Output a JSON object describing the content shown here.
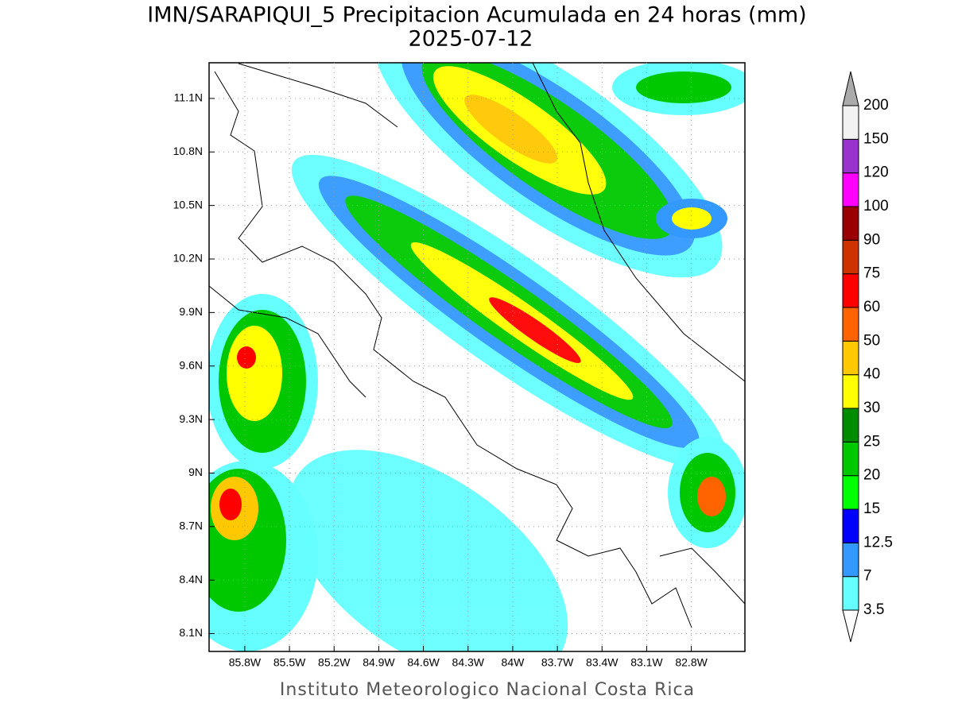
{
  "chart_data": {
    "type": "map",
    "title": "IMN/SARAPIQUI_5 Precipitacion Acumulada en 24 horas (mm)",
    "subtitle": "2025-07-12",
    "footer": "Instituto Meteorologico Nacional Costa Rica",
    "xlim": [
      -86.04,
      -82.44
    ],
    "ylim": [
      8.0,
      11.3
    ],
    "xticks": [
      {
        "value": -85.8,
        "label": "85.8W"
      },
      {
        "value": -85.5,
        "label": "85.5W"
      },
      {
        "value": -85.2,
        "label": "85.2W"
      },
      {
        "value": -84.9,
        "label": "84.9W"
      },
      {
        "value": -84.6,
        "label": "84.6W"
      },
      {
        "value": -84.3,
        "label": "84.3W"
      },
      {
        "value": -84.0,
        "label": "84W"
      },
      {
        "value": -83.7,
        "label": "83.7W"
      },
      {
        "value": -83.4,
        "label": "83.4W"
      },
      {
        "value": -83.1,
        "label": "83.1W"
      },
      {
        "value": -82.8,
        "label": "82.8W"
      }
    ],
    "yticks": [
      {
        "value": 8.1,
        "label": "8.1N"
      },
      {
        "value": 8.4,
        "label": "8.4N"
      },
      {
        "value": 8.7,
        "label": "8.7N"
      },
      {
        "value": 9.0,
        "label": "9N"
      },
      {
        "value": 9.3,
        "label": "9.3N"
      },
      {
        "value": 9.6,
        "label": "9.6N"
      },
      {
        "value": 9.9,
        "label": "9.9N"
      },
      {
        "value": 10.2,
        "label": "10.2N"
      },
      {
        "value": 10.5,
        "label": "10.5N"
      },
      {
        "value": 10.8,
        "label": "10.8N"
      },
      {
        "value": 11.1,
        "label": "11.1N"
      }
    ],
    "grid": true,
    "colorbar": {
      "levels": [
        3.5,
        7,
        12.5,
        15,
        20,
        25,
        30,
        40,
        50,
        60,
        75,
        90,
        100,
        120,
        150,
        200
      ],
      "colors": [
        "#66ffff",
        "#3399ff",
        "#0000ff",
        "#00ff00",
        "#00c800",
        "#008c00",
        "#ffff00",
        "#ffc800",
        "#ff6400",
        "#ff0000",
        "#cc3300",
        "#990000",
        "#ff00ff",
        "#9933cc",
        "#f2f2f2"
      ],
      "under_color": "#ffffff",
      "over_color": "#aaaaaa"
    }
  }
}
